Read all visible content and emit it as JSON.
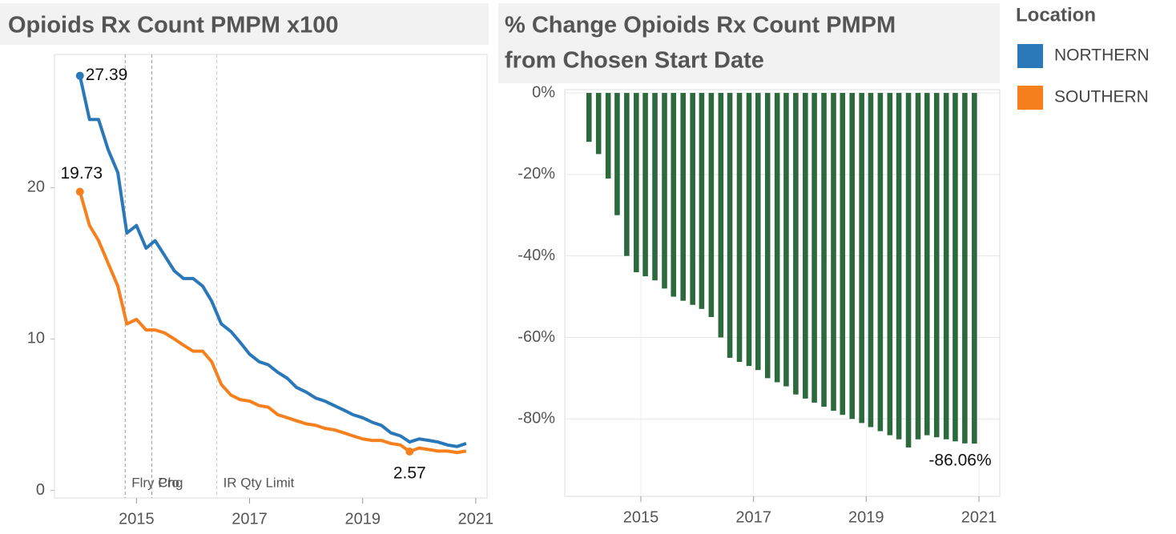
{
  "chart_data": [
    {
      "type": "line",
      "title": "Opioids Rx Count PMPM x100",
      "x": [
        2014,
        2014.17,
        2014.33,
        2014.5,
        2014.67,
        2014.83,
        2015,
        2015.17,
        2015.33,
        2015.5,
        2015.67,
        2015.83,
        2016,
        2016.17,
        2016.33,
        2016.5,
        2016.67,
        2016.83,
        2017,
        2017.17,
        2017.33,
        2017.5,
        2017.67,
        2017.83,
        2018,
        2018.17,
        2018.33,
        2018.5,
        2018.67,
        2018.83,
        2019,
        2019.17,
        2019.33,
        2019.5,
        2019.67,
        2019.83,
        2020,
        2020.17,
        2020.33,
        2020.5,
        2020.67,
        2020.83
      ],
      "series": [
        {
          "name": "NORTHERN",
          "color": "#2b78b8",
          "values": [
            27.39,
            24.5,
            24.5,
            22.5,
            21,
            17,
            17.5,
            16,
            16.5,
            15.5,
            14.5,
            14,
            14,
            13.5,
            12.5,
            11,
            10.5,
            9.8,
            9,
            8.5,
            8.3,
            7.8,
            7.4,
            6.8,
            6.5,
            6.1,
            5.9,
            5.6,
            5.3,
            5,
            4.8,
            4.5,
            4.3,
            3.8,
            3.6,
            3.2,
            3.4,
            3.3,
            3.2,
            3,
            2.9,
            3.1
          ],
          "value_labels": [
            "27.39",
            null,
            null,
            null,
            null,
            null,
            null,
            null,
            null,
            null,
            null,
            null,
            null,
            null,
            null,
            null,
            null,
            null,
            null,
            null,
            null,
            null,
            null,
            null,
            null,
            null,
            null,
            null,
            null,
            null,
            null,
            null,
            null,
            null,
            null,
            null,
            null,
            null,
            null,
            null,
            null,
            null
          ]
        },
        {
          "name": "SOUTHERN",
          "color": "#f7801e",
          "values": [
            19.73,
            17.5,
            16.5,
            15,
            13.5,
            11,
            11.3,
            10.6,
            10.6,
            10.4,
            10,
            9.6,
            9.2,
            9.2,
            8.5,
            7,
            6.3,
            6,
            5.9,
            5.6,
            5.5,
            5,
            4.8,
            4.6,
            4.4,
            4.3,
            4.1,
            4,
            3.8,
            3.6,
            3.4,
            3.3,
            3.3,
            3.1,
            3,
            2.57,
            2.8,
            2.7,
            2.6,
            2.6,
            2.5,
            2.6
          ],
          "value_labels": [
            "19.73",
            null,
            null,
            null,
            null,
            null,
            null,
            null,
            null,
            null,
            null,
            null,
            null,
            null,
            null,
            null,
            null,
            null,
            null,
            null,
            null,
            null,
            null,
            null,
            null,
            null,
            null,
            null,
            null,
            null,
            null,
            null,
            null,
            null,
            null,
            "2.57",
            null,
            null,
            null,
            null,
            null,
            null
          ]
        }
      ],
      "xlim": [
        2013.55,
        2021.2
      ],
      "xticks": [
        2015,
        2017,
        2019,
        2021
      ],
      "ylim": [
        -0.5,
        28.8
      ],
      "yticks": [
        0,
        10,
        20
      ],
      "grid": false,
      "annotations": [
        {
          "x": 2014.8,
          "label": "Flry Chg"
        },
        {
          "x": 2015.27,
          "label": "Pro"
        },
        {
          "x": 2016.42,
          "label": "IR Qty Limit"
        }
      ],
      "legend_title": "Location",
      "legend": "right"
    },
    {
      "type": "bar",
      "title": "% Change Opioids Rx Count PMPM from Chosen Start Date",
      "x": [
        2014.08,
        2014.25,
        2014.42,
        2014.58,
        2014.75,
        2014.92,
        2015.08,
        2015.25,
        2015.42,
        2015.58,
        2015.75,
        2015.92,
        2016.08,
        2016.25,
        2016.42,
        2016.58,
        2016.75,
        2016.92,
        2017.08,
        2017.25,
        2017.42,
        2017.58,
        2017.75,
        2017.92,
        2018.08,
        2018.25,
        2018.42,
        2018.58,
        2018.75,
        2018.92,
        2019.08,
        2019.25,
        2019.42,
        2019.58,
        2019.75,
        2019.92,
        2020.08,
        2020.25,
        2020.42,
        2020.58,
        2020.75,
        2020.92
      ],
      "values": [
        -12,
        -15,
        -21,
        -30,
        -40,
        -44,
        -45,
        -46,
        -48,
        -50,
        -51,
        -52,
        -53,
        -55,
        -60,
        -65,
        -66,
        -67,
        -68,
        -70,
        -71,
        -72,
        -74,
        -75,
        -76,
        -77,
        -78,
        -79,
        -80,
        -81,
        -82,
        -83,
        -84,
        -85,
        -87,
        -85,
        -84,
        -84.5,
        -85,
        -85.5,
        -86,
        -86.06
      ],
      "value_labels": [
        null,
        null,
        null,
        null,
        null,
        null,
        null,
        null,
        null,
        null,
        null,
        null,
        null,
        null,
        null,
        null,
        null,
        null,
        null,
        null,
        null,
        null,
        null,
        null,
        null,
        null,
        null,
        null,
        null,
        null,
        null,
        null,
        null,
        null,
        null,
        null,
        null,
        null,
        null,
        null,
        null,
        "-86.06%"
      ],
      "color": "#2c6a3d",
      "xlim": [
        2013.65,
        2021.37
      ],
      "xticks": [
        2015,
        2017,
        2019,
        2021
      ],
      "ylim": [
        -99,
        0.8
      ],
      "yticks": [
        {
          "value": 0,
          "label": "0%"
        },
        {
          "value": -20,
          "label": "-20%"
        },
        {
          "value": -40,
          "label": "-40%"
        },
        {
          "value": -60,
          "label": "-60%"
        },
        {
          "value": -80,
          "label": "-80%"
        }
      ],
      "grid": true
    }
  ]
}
